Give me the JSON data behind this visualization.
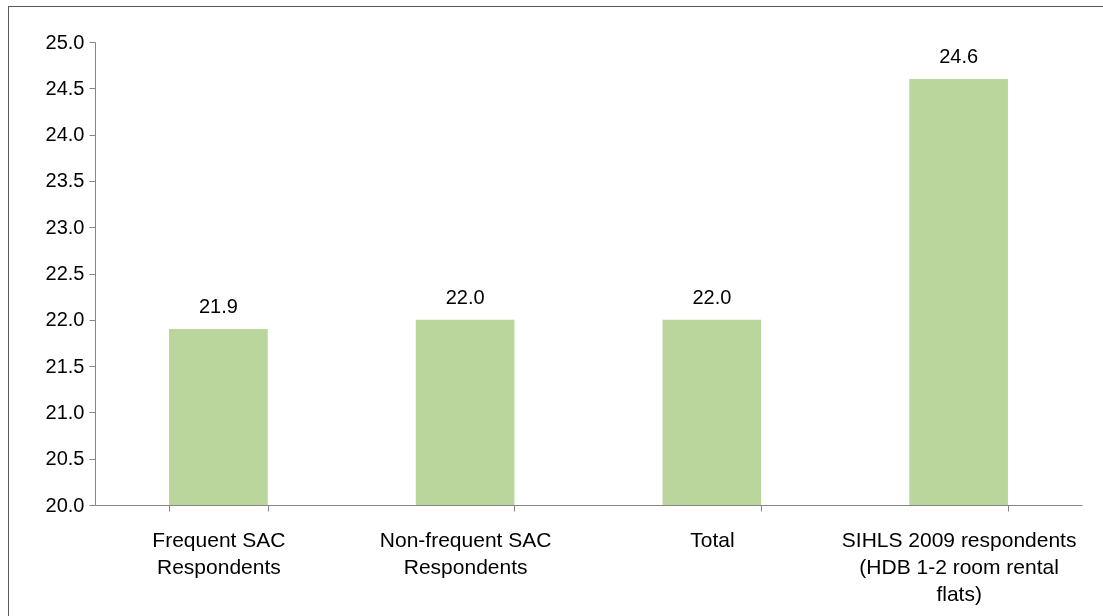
{
  "chart_data": {
    "type": "bar",
    "categories": [
      "Frequent SAC Respondents",
      "Non-frequent SAC Respondents",
      "Total",
      "SIHLS 2009 respondents (HDB 1-2 room rental flats)"
    ],
    "values": [
      21.9,
      22.0,
      22.0,
      24.6
    ],
    "value_labels": [
      "21.9",
      "22.0",
      "22.0",
      "24.6"
    ],
    "color": "#bbd69d",
    "ylim": [
      20,
      25
    ],
    "yticks": [
      {
        "value": 20,
        "label": "20.0"
      },
      20.5,
      {
        "value": 21,
        "label": "21.0"
      },
      21.5,
      {
        "value": 22,
        "label": "22.0"
      },
      22.5,
      {
        "value": 23,
        "label": "23.0"
      },
      23.5,
      {
        "value": 24,
        "label": "24.0"
      },
      24.5,
      {
        "value": 25,
        "label": "25.0"
      }
    ]
  }
}
